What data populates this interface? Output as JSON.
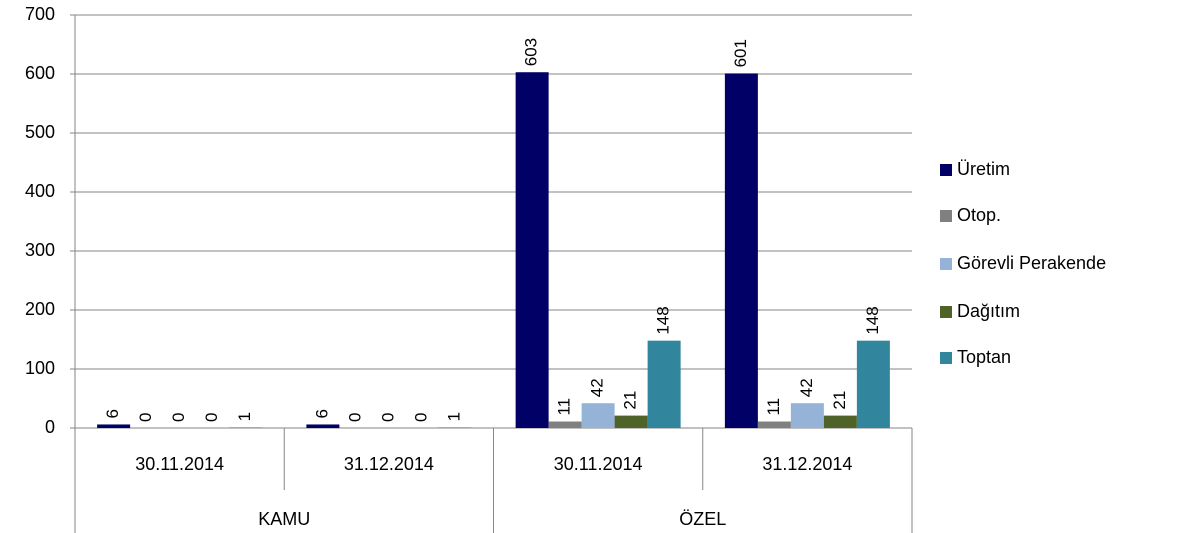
{
  "chart_data": {
    "type": "bar",
    "groups": [
      {
        "name": "KAMU",
        "categories": [
          "30.11.2014",
          "31.12.2014"
        ]
      },
      {
        "name": "ÖZEL",
        "categories": [
          "30.11.2014",
          "31.12.2014"
        ]
      }
    ],
    "series": [
      {
        "name": "Üretim",
        "color": "#000066",
        "values": [
          6,
          6,
          603,
          601
        ]
      },
      {
        "name": "Otop.",
        "color": "#808080",
        "values": [
          0,
          0,
          11,
          11
        ]
      },
      {
        "name": "Görevli Perakende",
        "color": "#95b3d7",
        "values": [
          0,
          0,
          42,
          42
        ]
      },
      {
        "name": "Dağıtım",
        "color": "#4f6228",
        "values": [
          0,
          0,
          21,
          21
        ]
      },
      {
        "name": "Toptan",
        "color": "#31859c",
        "values": [
          1,
          1,
          148,
          148
        ]
      }
    ],
    "ylim": [
      0,
      700
    ],
    "yticks": [
      0,
      100,
      200,
      300,
      400,
      500,
      600,
      700
    ],
    "grid": true,
    "legend": "right",
    "data_labels": true
  }
}
